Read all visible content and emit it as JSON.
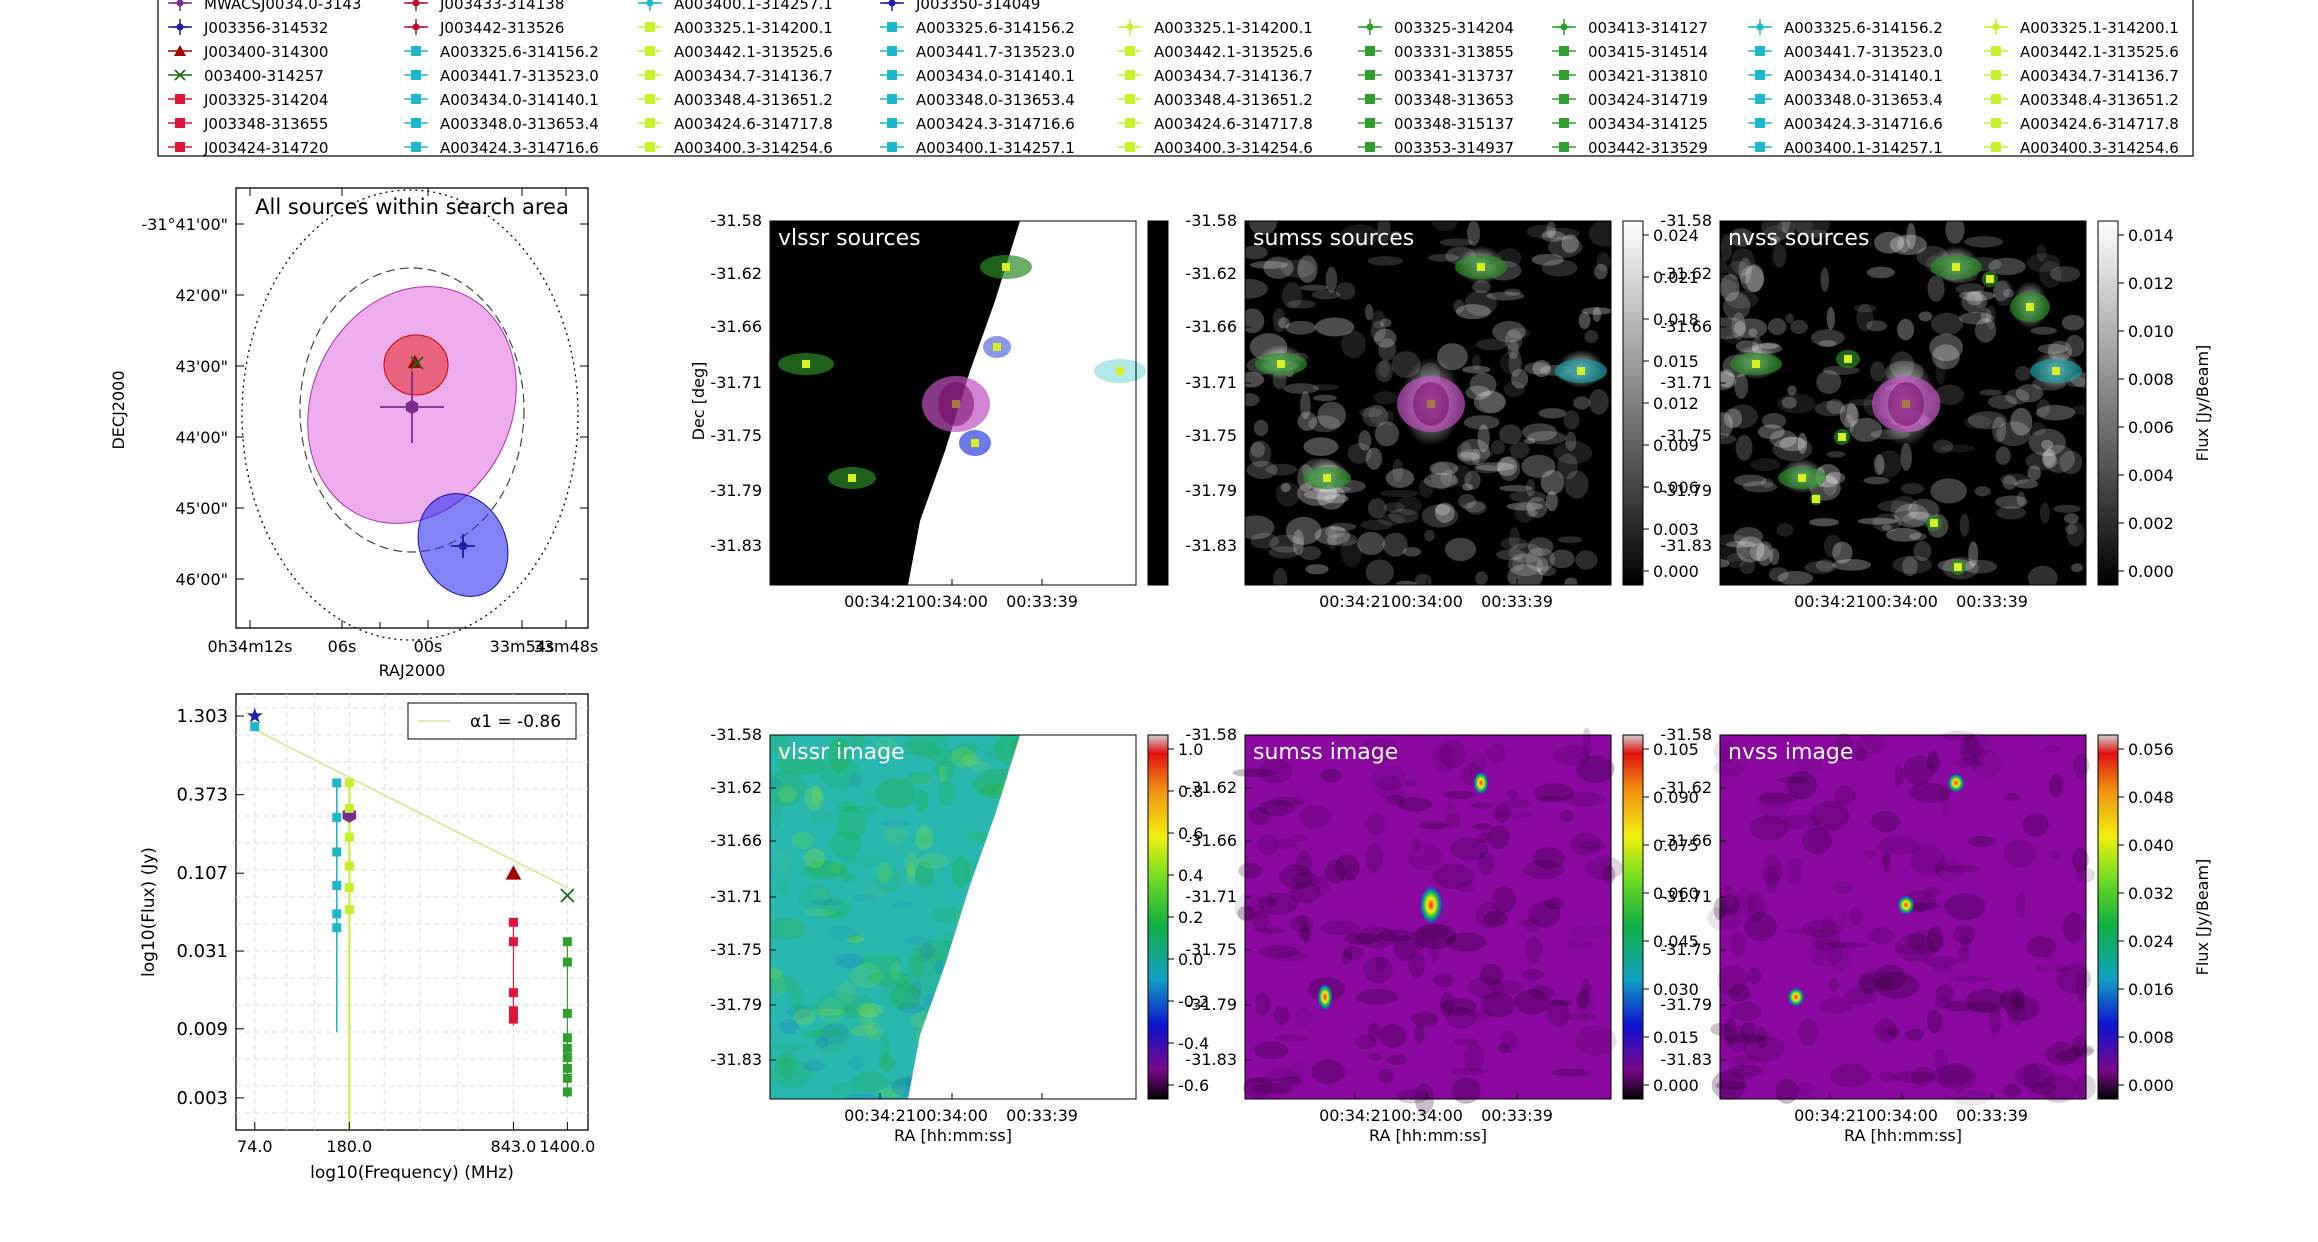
{
  "legend": {
    "columns": [
      [
        {
          "label": "MWACSJ0034.0-3143",
          "color": "#7b2d8e",
          "marker": "plus"
        },
        {
          "label": "J003356-314532",
          "color": "#1f1fa8",
          "marker": "plus"
        },
        {
          "label": "J003400-314300",
          "color": "#a00000",
          "marker": "triangle"
        },
        {
          "label": "003400-314257",
          "color": "#1a6b1a",
          "marker": "x"
        },
        {
          "label": "J003325-314204",
          "color": "#e0143c",
          "marker": "square"
        },
        {
          "label": "J003348-313655",
          "color": "#e0143c",
          "marker": "square"
        },
        {
          "label": "J003424-314720",
          "color": "#e0143c",
          "marker": "square"
        }
      ],
      [
        {
          "label": "J003433-314138",
          "color": "#c0102e",
          "marker": "plus"
        },
        {
          "label": "J003442-313526",
          "color": "#c0102e",
          "marker": "plus"
        },
        {
          "label": "A003325.6-314156.2",
          "color": "#1ab8c8",
          "marker": "square"
        },
        {
          "label": "A003441.7-313523.0",
          "color": "#1ab8c8",
          "marker": "square"
        },
        {
          "label": "A003434.0-314140.1",
          "color": "#1ab8c8",
          "marker": "square"
        },
        {
          "label": "A003348.0-313653.4",
          "color": "#1ab8c8",
          "marker": "square"
        },
        {
          "label": "A003424.3-314716.6",
          "color": "#1ab8c8",
          "marker": "square"
        }
      ],
      [
        {
          "label": "A003400.1-314257.1",
          "color": "#1ab8c8",
          "marker": "plus"
        },
        {
          "label": "A003325.1-314200.1",
          "color": "#c8f028",
          "marker": "square"
        },
        {
          "label": "A003442.1-313525.6",
          "color": "#c8f028",
          "marker": "square"
        },
        {
          "label": "A003434.7-314136.7",
          "color": "#c8f028",
          "marker": "square"
        },
        {
          "label": "A003348.4-313651.2",
          "color": "#c8f028",
          "marker": "square"
        },
        {
          "label": "A003424.6-314717.8",
          "color": "#c8f028",
          "marker": "square"
        },
        {
          "label": "A003400.3-314254.6",
          "color": "#c8f028",
          "marker": "square"
        }
      ],
      [
        {
          "label": "J003350-314049",
          "color": "#1f1fa8",
          "marker": "plus"
        },
        {
          "label": "A003325.6-314156.2",
          "color": "#1ab8c8",
          "marker": "square"
        },
        {
          "label": "A003441.7-313523.0",
          "color": "#1ab8c8",
          "marker": "square"
        },
        {
          "label": "A003434.0-314140.1",
          "color": "#1ab8c8",
          "marker": "square"
        },
        {
          "label": "A003348.0-313653.4",
          "color": "#1ab8c8",
          "marker": "square"
        },
        {
          "label": "A003424.3-314716.6",
          "color": "#1ab8c8",
          "marker": "square"
        },
        {
          "label": "A003400.1-314257.1",
          "color": "#1ab8c8",
          "marker": "square"
        }
      ],
      [
        {
          "label": "A003325.1-314200.1",
          "color": "#c8f028",
          "marker": "plus"
        },
        {
          "label": "A003442.1-313525.6",
          "color": "#c8f028",
          "marker": "square"
        },
        {
          "label": "A003434.7-314136.7",
          "color": "#c8f028",
          "marker": "square"
        },
        {
          "label": "A003348.4-313651.2",
          "color": "#c8f028",
          "marker": "square"
        },
        {
          "label": "A003424.6-314717.8",
          "color": "#c8f028",
          "marker": "square"
        },
        {
          "label": "A003400.3-314254.6",
          "color": "#c8f028",
          "marker": "square"
        }
      ],
      [
        {
          "label": "003325-314204",
          "color": "#2e9e2e",
          "marker": "plus"
        },
        {
          "label": "003331-313855",
          "color": "#2e9e2e",
          "marker": "square"
        },
        {
          "label": "003341-313737",
          "color": "#2e9e2e",
          "marker": "square"
        },
        {
          "label": "003348-313653",
          "color": "#2e9e2e",
          "marker": "square"
        },
        {
          "label": "003348-315137",
          "color": "#2e9e2e",
          "marker": "square"
        },
        {
          "label": "003353-314937",
          "color": "#2e9e2e",
          "marker": "square"
        }
      ],
      [
        {
          "label": "003413-314127",
          "color": "#2e9e2e",
          "marker": "plus"
        },
        {
          "label": "003415-314514",
          "color": "#2e9e2e",
          "marker": "square"
        },
        {
          "label": "003421-313810",
          "color": "#2e9e2e",
          "marker": "square"
        },
        {
          "label": "003424-314719",
          "color": "#2e9e2e",
          "marker": "square"
        },
        {
          "label": "003434-314125",
          "color": "#2e9e2e",
          "marker": "square"
        },
        {
          "label": "003442-313529",
          "color": "#2e9e2e",
          "marker": "square"
        }
      ],
      [
        {
          "label": "A003325.6-314156.2",
          "color": "#1ab8c8",
          "marker": "plus"
        },
        {
          "label": "A003441.7-313523.0",
          "color": "#1ab8c8",
          "marker": "square"
        },
        {
          "label": "A003434.0-314140.1",
          "color": "#1ab8c8",
          "marker": "square"
        },
        {
          "label": "A003348.0-313653.4",
          "color": "#1ab8c8",
          "marker": "square"
        },
        {
          "label": "A003424.3-314716.6",
          "color": "#1ab8c8",
          "marker": "square"
        },
        {
          "label": "A003400.1-314257.1",
          "color": "#1ab8c8",
          "marker": "square"
        }
      ],
      [
        {
          "label": "A003325.1-314200.1",
          "color": "#c8f028",
          "marker": "plus"
        },
        {
          "label": "A003442.1-313525.6",
          "color": "#c8f028",
          "marker": "square"
        },
        {
          "label": "A003434.7-314136.7",
          "color": "#c8f028",
          "marker": "square"
        },
        {
          "label": "A003348.4-313651.2",
          "color": "#c8f028",
          "marker": "square"
        },
        {
          "label": "A003424.6-314717.8",
          "color": "#c8f028",
          "marker": "square"
        },
        {
          "label": "A003400.3-314254.6",
          "color": "#c8f028",
          "marker": "square"
        }
      ]
    ]
  },
  "chart_data": [
    {
      "type": "scatter",
      "title": "All sources within search area",
      "xlabel": "RAJ2000",
      "ylabel": "DECJ2000",
      "x_ticks": [
        "0h34m12s",
        "06s",
        "00s",
        "33m54s",
        "33m48s"
      ],
      "y_ticks": [
        "-31°41'00\"",
        "42'00\"",
        "43'00\"",
        "44'00\"",
        "45'00\"",
        "46'00\""
      ],
      "sources": [
        {
          "name": "MWACSJ0034.0-3143",
          "color": "#7b2d8e",
          "ra_s": 0,
          "dec_arcmin": 43.5
        },
        {
          "name": "J003400-314300",
          "color": "#a00000",
          "ra_s": 0,
          "dec_arcmin": 43.0
        },
        {
          "name": "003400-314257",
          "color": "#1a6b1a",
          "ra_s": 0,
          "dec_arcmin": 42.95
        },
        {
          "name": "J003356-314532",
          "color": "#1f1fa8",
          "ra_s": -4.5,
          "dec_arcmin": 45.53
        }
      ]
    },
    {
      "type": "scatter",
      "xscale": "log",
      "yscale": "log",
      "xlabel": "log10(Frequency) (MHz)",
      "ylabel": "log10(Flux) (Jy)",
      "x_ticks": [
        "74.0",
        "180.0",
        "843.0",
        "1400.0"
      ],
      "y_ticks": [
        "1.303",
        "0.373",
        "0.107",
        "0.031",
        "0.009",
        "0.003"
      ],
      "fit_label": "α1 = -0.86",
      "fit": {
        "alpha": -0.86,
        "x": [
          74,
          1400
        ],
        "y": [
          1.05,
          0.085
        ]
      },
      "points": [
        {
          "freq": 74,
          "flux": 1.303,
          "color": "#1f1fa8",
          "marker": "star"
        },
        {
          "freq": 74,
          "flux": 1.1,
          "color": "#1ab8c8",
          "marker": "square"
        },
        {
          "freq": 180,
          "flux": 0.27,
          "color": "#7b2d8e",
          "marker": "hexagon"
        },
        {
          "freq": 843,
          "flux": 0.107,
          "color": "#a00000",
          "marker": "triangle"
        },
        {
          "freq": 1400,
          "flux": 0.075,
          "color": "#1a6b1a",
          "marker": "x"
        },
        {
          "freq": 843,
          "flux": 0.049,
          "color": "#e0143c",
          "marker": "square"
        },
        {
          "freq": 843,
          "flux": 0.036,
          "color": "#e0143c",
          "marker": "square"
        },
        {
          "freq": 843,
          "flux": 0.016,
          "color": "#e0143c",
          "marker": "square"
        },
        {
          "freq": 843,
          "flux": 0.012,
          "color": "#e0143c",
          "marker": "square"
        },
        {
          "freq": 843,
          "flux": 0.0105,
          "color": "#e0143c",
          "marker": "square"
        },
        {
          "freq": 160,
          "flux": 0.45,
          "color": "#1ab8c8",
          "marker": "square"
        },
        {
          "freq": 160,
          "flux": 0.26,
          "color": "#1ab8c8",
          "marker": "square"
        },
        {
          "freq": 160,
          "flux": 0.15,
          "color": "#1ab8c8",
          "marker": "square"
        },
        {
          "freq": 160,
          "flux": 0.088,
          "color": "#1ab8c8",
          "marker": "square"
        },
        {
          "freq": 160,
          "flux": 0.056,
          "color": "#1ab8c8",
          "marker": "square"
        },
        {
          "freq": 160,
          "flux": 0.045,
          "color": "#1ab8c8",
          "marker": "square"
        },
        {
          "freq": 180,
          "flux": 0.45,
          "color": "#c8f028",
          "marker": "square"
        },
        {
          "freq": 180,
          "flux": 0.3,
          "color": "#c8f028",
          "marker": "square"
        },
        {
          "freq": 180,
          "flux": 0.19,
          "color": "#c8f028",
          "marker": "square"
        },
        {
          "freq": 180,
          "flux": 0.12,
          "color": "#c8f028",
          "marker": "square"
        },
        {
          "freq": 180,
          "flux": 0.085,
          "color": "#c8f028",
          "marker": "square"
        },
        {
          "freq": 180,
          "flux": 0.06,
          "color": "#c8f028",
          "marker": "square"
        },
        {
          "freq": 1400,
          "flux": 0.036,
          "color": "#2e9e2e",
          "marker": "square"
        },
        {
          "freq": 1400,
          "flux": 0.026,
          "color": "#2e9e2e",
          "marker": "square"
        },
        {
          "freq": 1400,
          "flux": 0.0115,
          "color": "#2e9e2e",
          "marker": "square"
        },
        {
          "freq": 1400,
          "flux": 0.0078,
          "color": "#2e9e2e",
          "marker": "square"
        },
        {
          "freq": 1400,
          "flux": 0.0066,
          "color": "#2e9e2e",
          "marker": "square"
        },
        {
          "freq": 1400,
          "flux": 0.0057,
          "color": "#2e9e2e",
          "marker": "square"
        },
        {
          "freq": 1400,
          "flux": 0.0048,
          "color": "#2e9e2e",
          "marker": "square"
        },
        {
          "freq": 1400,
          "flux": 0.0041,
          "color": "#2e9e2e",
          "marker": "square"
        },
        {
          "freq": 1400,
          "flux": 0.0033,
          "color": "#2e9e2e",
          "marker": "square"
        }
      ]
    },
    {
      "type": "heatmap",
      "row": "sources",
      "panels": [
        {
          "title": "vlssr sources",
          "colormap": "gray",
          "colorbar_ticks": []
        },
        {
          "title": "sumss sources",
          "colormap": "gray",
          "colorbar_ticks": [
            "0.024",
            "0.021",
            "0.018",
            "0.015",
            "0.012",
            "0.009",
            "0.006",
            "0.003",
            "0.000"
          ]
        },
        {
          "title": "nvss sources",
          "colormap": "gray",
          "colorbar_ticks": [
            "0.014",
            "0.012",
            "0.010",
            "0.008",
            "0.006",
            "0.004",
            "0.002",
            "0.000"
          ],
          "colorbar_label": "Flux [Jy/Beam]"
        }
      ],
      "ylabel": "Dec [deg]",
      "y_ticks": [
        "-31.58",
        "-31.62",
        "-31.66",
        "-31.71",
        "-31.75",
        "-31.79",
        "-31.83"
      ],
      "x_ticks": [
        "00:34:21",
        "00:34:00",
        "00:33:39"
      ]
    },
    {
      "type": "heatmap",
      "row": "images",
      "panels": [
        {
          "title": "vlssr image",
          "colormap": "spectral",
          "colorbar_ticks": [
            "1.0",
            "0.8",
            "0.6",
            "0.4",
            "0.2",
            "0.0",
            "-0.2",
            "-0.4",
            "-0.6"
          ]
        },
        {
          "title": "sumss image",
          "colormap": "spectral",
          "colorbar_ticks": [
            "0.105",
            "0.090",
            "0.075",
            "0.060",
            "0.045",
            "0.030",
            "0.015",
            "0.000"
          ]
        },
        {
          "title": "nvss image",
          "colormap": "spectral",
          "colorbar_ticks": [
            "0.056",
            "0.048",
            "0.040",
            "0.032",
            "0.024",
            "0.016",
            "0.008",
            "0.000"
          ],
          "colorbar_label": "Flux [Jy/Beam]"
        }
      ],
      "xlabel": "RA [hh:mm:ss]",
      "y_ticks": [
        "-31.58",
        "-31.62",
        "-31.66",
        "-31.71",
        "-31.75",
        "-31.79",
        "-31.83"
      ],
      "x_ticks": [
        "00:34:21",
        "00:34:00",
        "00:33:39"
      ]
    }
  ]
}
